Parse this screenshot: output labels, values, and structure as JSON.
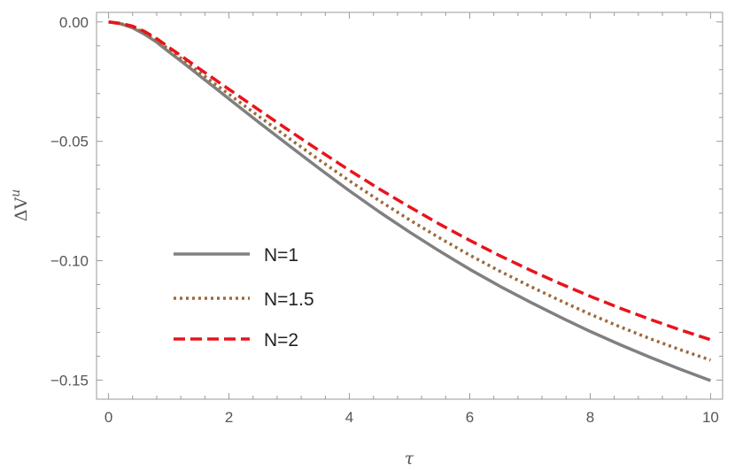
{
  "chart_data": {
    "type": "line",
    "xlabel": "τ",
    "ylabel": "ΔV",
    "ylabel_sup": "u",
    "xlim": [
      -0.2,
      10.2
    ],
    "ylim": [
      -0.158,
      0.004
    ],
    "grid": false,
    "legend_position": "bottom-left",
    "x_ticks": [
      0,
      2,
      4,
      6,
      8,
      10
    ],
    "x_tick_labels": [
      "0",
      "2",
      "4",
      "6",
      "8",
      "10"
    ],
    "y_ticks": [
      0.0,
      -0.05,
      -0.1,
      -0.15
    ],
    "y_tick_labels": [
      "0.00",
      "−0.05",
      "−0.10",
      "−0.15"
    ],
    "x": [
      0,
      0.2,
      0.4,
      0.6,
      0.8,
      1,
      1.2,
      1.4,
      1.6,
      1.8,
      2,
      2.5,
      3,
      3.5,
      4,
      4.5,
      5,
      5.5,
      6,
      6.5,
      7,
      7.5,
      8,
      8.5,
      9,
      9.5,
      10
    ],
    "series": [
      {
        "name": "N=1",
        "color": "#808080",
        "dash": "solid",
        "values": [
          0.0,
          -0.0008,
          -0.0025,
          -0.0052,
          -0.0085,
          -0.0125,
          -0.0163,
          -0.0203,
          -0.0243,
          -0.0282,
          -0.0322,
          -0.0421,
          -0.0518,
          -0.0614,
          -0.0707,
          -0.0796,
          -0.088,
          -0.096,
          -0.1036,
          -0.1107,
          -0.1173,
          -0.1236,
          -0.1296,
          -0.1352,
          -0.1405,
          -0.1455,
          -0.1502
        ]
      },
      {
        "name": "N=1.5",
        "color": "#9b6a3c",
        "dash": "dotted",
        "values": [
          0.0,
          -0.0007,
          -0.0021,
          -0.0045,
          -0.0077,
          -0.0115,
          -0.0152,
          -0.019,
          -0.0228,
          -0.0266,
          -0.0303,
          -0.0396,
          -0.0488,
          -0.0578,
          -0.0665,
          -0.0749,
          -0.0829,
          -0.0905,
          -0.0977,
          -0.1044,
          -0.1107,
          -0.1167,
          -0.1224,
          -0.1277,
          -0.1327,
          -0.1373,
          -0.1416
        ]
      },
      {
        "name": "N=2",
        "color": "#e8141c",
        "dash": "dashed",
        "values": [
          0.0,
          -0.0006,
          -0.0018,
          -0.004,
          -0.007,
          -0.0106,
          -0.0141,
          -0.0177,
          -0.0212,
          -0.0247,
          -0.0282,
          -0.0369,
          -0.0455,
          -0.0539,
          -0.0621,
          -0.07,
          -0.0775,
          -0.0847,
          -0.0915,
          -0.0979,
          -0.1039,
          -0.1096,
          -0.1149,
          -0.1199,
          -0.1246,
          -0.129,
          -0.1331
        ]
      }
    ]
  }
}
